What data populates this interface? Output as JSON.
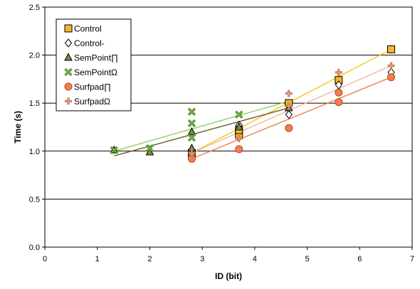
{
  "chart_data": {
    "type": "scatter",
    "title": "",
    "xlabel": "ID (bit)",
    "ylabel": "Time (s)",
    "xlim": [
      0,
      7
    ],
    "ylim": [
      0.0,
      2.5
    ],
    "x_ticks": [
      "0",
      "1",
      "2",
      "3",
      "4",
      "5",
      "6",
      "7"
    ],
    "y_ticks": [
      "0.0",
      "0.5",
      "1.0",
      "1.5",
      "2.0",
      "2.5"
    ],
    "grid": "horizontal",
    "legend_position": "top-left inside",
    "series": [
      {
        "name": "Control",
        "marker": "square",
        "color": "#F5B52E",
        "stroke": "#000000",
        "line_color": "#F5C518",
        "points": [
          [
            2.8,
            0.98
          ],
          [
            3.7,
            1.17
          ],
          [
            3.7,
            1.22
          ],
          [
            4.65,
            1.5
          ],
          [
            5.6,
            1.74
          ],
          [
            6.6,
            2.06
          ]
        ],
        "trend": [
          [
            2.8,
            0.98
          ],
          [
            6.6,
            2.06
          ]
        ]
      },
      {
        "name": "Control-",
        "marker": "diamond",
        "color": "#FFFFFF",
        "stroke": "#000000",
        "line_color": null,
        "points": [
          [
            2.8,
            0.97
          ],
          [
            3.7,
            1.27
          ],
          [
            4.65,
            1.38
          ],
          [
            5.6,
            1.69
          ],
          [
            6.6,
            1.82
          ]
        ],
        "trend": null
      },
      {
        "name": "SemPoint∏",
        "marker": "triangle",
        "color": "#7A8C45",
        "stroke": "#000000",
        "line_color": "#6B5E2E",
        "points": [
          [
            1.32,
            1.01
          ],
          [
            2.0,
            0.99
          ],
          [
            2.8,
            1.03
          ],
          [
            2.8,
            1.2
          ],
          [
            3.7,
            1.25
          ],
          [
            4.65,
            1.45
          ]
        ],
        "trend": [
          [
            1.32,
            0.95
          ],
          [
            4.65,
            1.45
          ]
        ]
      },
      {
        "name": "SemPointΩ",
        "marker": "x-box",
        "color": "#7DBE44",
        "stroke": "#2F6B1F",
        "line_color": "#8DD05E",
        "points": [
          [
            1.32,
            1.01
          ],
          [
            2.0,
            1.03
          ],
          [
            2.8,
            1.14
          ],
          [
            2.8,
            1.29
          ],
          [
            2.8,
            1.41
          ],
          [
            3.7,
            1.38
          ]
        ],
        "trend": [
          [
            1.32,
            1.0
          ],
          [
            4.65,
            1.52
          ]
        ]
      },
      {
        "name": "Surfpad∏",
        "marker": "circle",
        "color": "#F07E4E",
        "stroke": "#B8451E",
        "line_color": "#F07E4E",
        "points": [
          [
            2.8,
            0.92
          ],
          [
            3.7,
            1.02
          ],
          [
            4.65,
            1.24
          ],
          [
            5.6,
            1.51
          ],
          [
            5.6,
            1.61
          ],
          [
            6.6,
            1.77
          ]
        ],
        "trend": [
          [
            2.8,
            0.92
          ],
          [
            6.6,
            1.77
          ]
        ]
      },
      {
        "name": "SurfpadΩ",
        "marker": "plus",
        "color": "#E8A88A",
        "stroke": "#A0522D",
        "line_color": "#F4B79C",
        "points": [
          [
            2.8,
            0.98
          ],
          [
            3.7,
            1.13
          ],
          [
            4.65,
            1.47
          ],
          [
            4.65,
            1.6
          ],
          [
            5.6,
            1.82
          ],
          [
            6.6,
            1.89
          ]
        ],
        "trend": [
          [
            2.8,
            0.98
          ],
          [
            6.6,
            1.89
          ]
        ]
      }
    ]
  }
}
